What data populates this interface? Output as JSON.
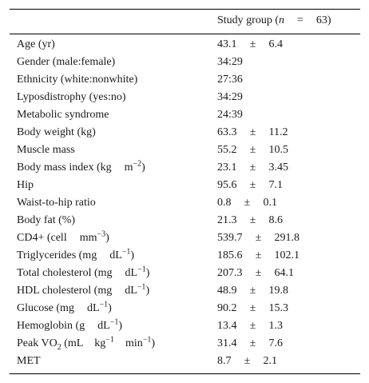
{
  "header": {
    "column_label": "Study group (",
    "n_symbol": "n",
    "equals": "=",
    "n_value": "63)"
  },
  "rows": [
    {
      "label": "Age (yr)",
      "mean": "43.1",
      "sd": "6.4"
    },
    {
      "label": "Gender (male:female)",
      "value": "34:29"
    },
    {
      "label": "Ethnicity (white:nonwhite)",
      "value": "27:36"
    },
    {
      "label": "Lyposdistrophy (yes:no)",
      "value": "34:29"
    },
    {
      "label": "Metabolic syndrome",
      "value": "24:39"
    },
    {
      "label": "Body weight (kg)",
      "mean": "63.3",
      "sd": "11.2"
    },
    {
      "label": "Muscle mass",
      "mean": "55.2",
      "sd": "10.5"
    },
    {
      "label_parts": [
        "Body mass index (kg",
        "m",
        "−2",
        ")"
      ],
      "mean": "23.1",
      "sd": "3.45"
    },
    {
      "label": "Hip",
      "mean": "95.6",
      "sd": "7.1"
    },
    {
      "label": "Waist-to-hip ratio",
      "mean": "0.8",
      "sd": "0.1"
    },
    {
      "label": "Body fat (%)",
      "mean": "21.3",
      "sd": "8.6"
    },
    {
      "label_parts": [
        "CD4+ (cell",
        "mm",
        "−3",
        ")"
      ],
      "mean": "539.7",
      "sd": "291.8"
    },
    {
      "label_parts": [
        "Triglycerides (mg",
        "dL",
        "−1",
        ")"
      ],
      "mean": "185.6",
      "sd": "102.1"
    },
    {
      "label_parts": [
        "Total cholesterol (mg",
        "dL",
        "−1",
        ")"
      ],
      "mean": "207.3",
      "sd": "64.1"
    },
    {
      "label_parts": [
        "HDL cholesterol (mg",
        "dL",
        "−1",
        ")"
      ],
      "mean": "48.9",
      "sd": "19.8"
    },
    {
      "label_parts": [
        "Glucose (mg",
        "dL",
        "−1",
        ")"
      ],
      "mean": "90.2",
      "sd": "15.3"
    },
    {
      "label_parts": [
        "Hemoglobin (g",
        "dL",
        "−1",
        ")"
      ],
      "mean": "13.4",
      "sd": "1.3"
    },
    {
      "label_vo2": [
        "Peak VO",
        "2",
        " (mL",
        "kg",
        "−1",
        "min",
        "−1",
        ")"
      ],
      "mean": "31.4",
      "sd": "7.6"
    },
    {
      "label": "MET",
      "mean": "8.7",
      "sd": "2.1"
    }
  ],
  "plus_minus": "±"
}
